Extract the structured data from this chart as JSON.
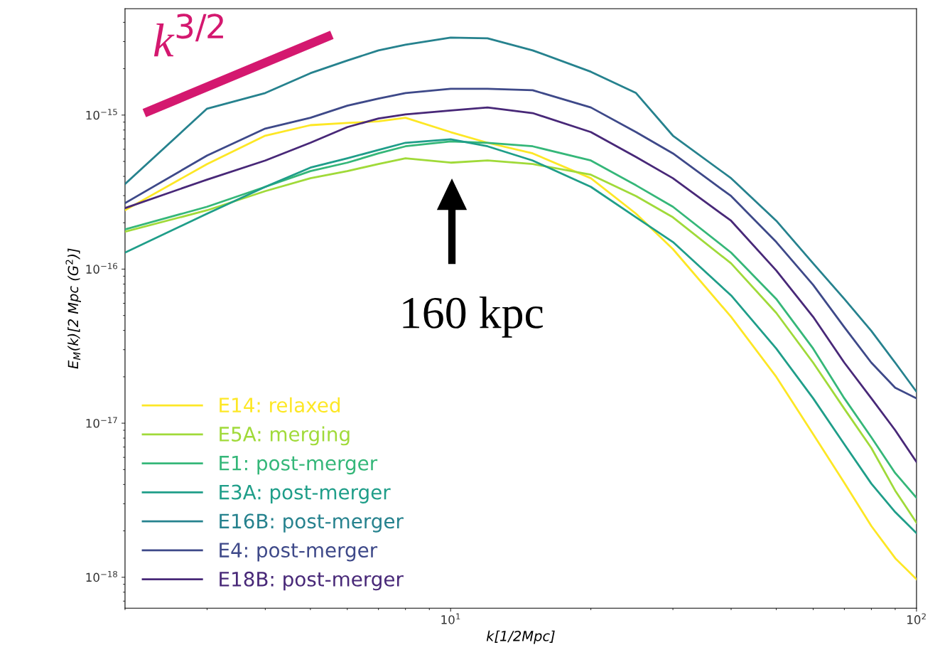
{
  "chart_data": {
    "type": "line",
    "xlabel": "k[1/2Mpc]",
    "ylabel": "E$_{M}$(k)[2 Mpc (G$^{2}$)]",
    "x": [
      2,
      3,
      4,
      5,
      6,
      7,
      8,
      10,
      12,
      15,
      20,
      25,
      30,
      40,
      50,
      60,
      70,
      80,
      90,
      100
    ],
    "series": [
      {
        "name": "E14: relaxed",
        "color": "#fde725",
        "values": [
          2.41e-16,
          4.81e-16,
          7.35e-16,
          8.6e-16,
          8.9e-16,
          9.1e-16,
          9.6e-16,
          7.75e-16,
          6.61e-16,
          5.64e-16,
          3.89e-16,
          2.29e-16,
          1.35e-16,
          4.9e-17,
          2e-17,
          8.5e-18,
          4.1e-18,
          2.15e-18,
          1.33e-18,
          9.7e-19
        ]
      },
      {
        "name": "E5A: merging",
        "color": "#a0da39",
        "values": [
          1.75e-16,
          2.41e-16,
          3.21e-16,
          3.89e-16,
          4.33e-16,
          4.81e-16,
          5.24e-16,
          4.91e-16,
          5.07e-16,
          4.81e-16,
          4.1e-16,
          2.98e-16,
          2.17e-16,
          1.09e-16,
          5.2e-17,
          2.47e-17,
          1.24e-17,
          6.9e-18,
          3.65e-18,
          2.26e-18
        ]
      },
      {
        "name": "E1: post-merger",
        "color": "#35b779",
        "values": [
          1.81e-16,
          2.54e-16,
          3.42e-16,
          4.33e-16,
          4.91e-16,
          5.64e-16,
          6.27e-16,
          6.75e-16,
          6.61e-16,
          6.27e-16,
          5.07e-16,
          3.5e-16,
          2.54e-16,
          1.28e-16,
          6.4e-17,
          3.05e-17,
          1.45e-17,
          8.1e-18,
          4.75e-18,
          3.28e-18
        ]
      },
      {
        "name": "E3A: post-merger",
        "color": "#1f9e89",
        "values": [
          1.28e-16,
          2.29e-16,
          3.42e-16,
          4.56e-16,
          5.24e-16,
          5.94e-16,
          6.61e-16,
          6.97e-16,
          6.27e-16,
          5.07e-16,
          3.42e-16,
          2.17e-16,
          1.5e-16,
          6.75e-17,
          3.05e-17,
          1.45e-17,
          7.3e-18,
          4.05e-18,
          2.65e-18,
          1.93e-18
        ]
      },
      {
        "name": "E16B: post-merger",
        "color": "#26828e",
        "values": [
          3.57e-16,
          1.1e-15,
          1.39e-15,
          1.87e-15,
          2.26e-15,
          2.63e-15,
          2.86e-15,
          3.18e-15,
          3.15e-15,
          2.63e-15,
          1.91e-15,
          1.39e-15,
          7.35e-16,
          3.89e-16,
          2.06e-16,
          1.09e-16,
          6.4e-17,
          3.97e-17,
          2.47e-17,
          1.6e-17
        ]
      },
      {
        "name": "E4: post-merger",
        "color": "#3e4989",
        "values": [
          2.68e-16,
          5.46e-16,
          8.17e-16,
          9.6e-16,
          1.15e-15,
          1.28e-15,
          1.39e-15,
          1.48e-15,
          1.48e-15,
          1.45e-15,
          1.12e-15,
          7.75e-16,
          5.64e-16,
          2.98e-16,
          1.5e-16,
          7.9e-17,
          4.2e-17,
          2.47e-17,
          1.7e-17,
          1.45e-17
        ]
      },
      {
        "name": "E18B: post-merger",
        "color": "#482878",
        "values": [
          2.49e-16,
          3.81e-16,
          5.07e-16,
          6.61e-16,
          8.35e-16,
          9.5e-16,
          1.01e-15,
          1.07e-15,
          1.12e-15,
          1.03e-15,
          7.75e-16,
          5.35e-16,
          3.89e-16,
          2.06e-16,
          9.8e-17,
          4.9e-17,
          2.47e-17,
          1.45e-17,
          9e-18,
          5.6e-18
        ]
      },
      {
        "type": "line",
        "color": "#d4186f",
        "x": [
          2.2,
          5.56
        ],
        "values": [
          1.03e-15,
          3.32e-15
        ]
      }
    ],
    "annotations": [
      "k$^{3/2}$",
      "160 kpc"
    ],
    "log": "xy",
    "xlim": [
      2,
      100
    ],
    "xticks": [
      {
        "value": 10,
        "label": "10$^{1}$"
      },
      {
        "value": 100,
        "label": "10$^{2}$"
      }
    ],
    "ylim": [
      6.3e-19,
      4.9e-15
    ],
    "yticks": [
      {
        "value": 1e-18,
        "label": "10$^{−18}$"
      },
      {
        "value": 1e-17,
        "label": "10$^{−17}$"
      },
      {
        "value": 1e-16,
        "label": "10$^{−16}$"
      },
      {
        "value": 1e-15,
        "label": "10$^{−15}$"
      }
    ],
    "legend": "bottom left",
    "grid": false,
    "marker": "none",
    "line_style": "solid"
  }
}
